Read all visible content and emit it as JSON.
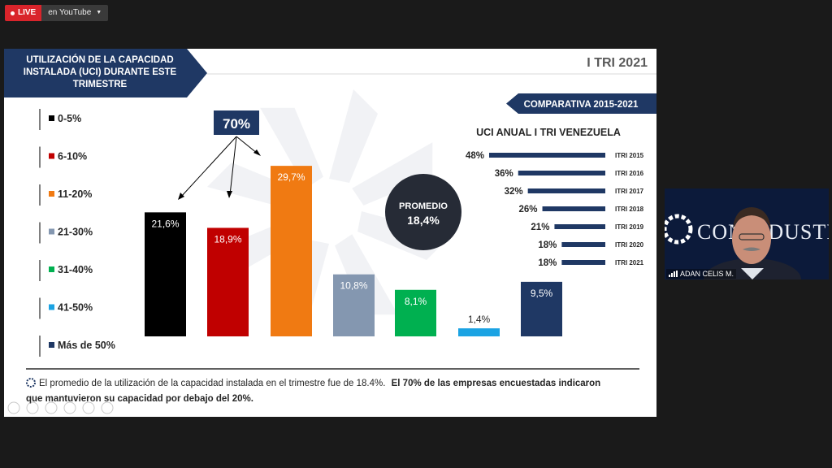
{
  "live": {
    "badge": "LIVE",
    "target": "en YouTube"
  },
  "slide": {
    "header_title": [
      "UTILIZACIÓN DE LA CAPACIDAD",
      "INSTALADA (UCI) DURANTE ESTE",
      "TRIMESTRE"
    ],
    "period": "I TRI 2021",
    "percent_callout": "70%",
    "promedio_label": "PROMEDIO",
    "promedio_value": "18,4%",
    "comparativa_label": "COMPARATIVA 2015-2021",
    "footnote_line1_normal": "El promedio de la utilización de la capacidad instalada en el trimestre fue de 18.4%.",
    "footnote_line1_bold": "El  70% de las empresas encuestadas indicaron",
    "footnote_line2_bold": "que mantuvieron su capacidad por debajo del 20%.",
    "colors": {
      "navy": "#1f3864",
      "red": "#c00000",
      "orange": "#f07a12",
      "grey": "#8497b0",
      "green": "#00b050",
      "blue": "#1ba3e3",
      "black": "#000000"
    }
  },
  "chart_data": [
    {
      "type": "bar",
      "categories": [
        "0-5%",
        "6-10%",
        "11-20%",
        "21-30%",
        "31-40%",
        "41-50%",
        "Más de 50%"
      ],
      "values": [
        21.6,
        18.9,
        29.7,
        10.8,
        8.1,
        1.4,
        9.5
      ],
      "labels": [
        "21,6%",
        "18,9%",
        "29,7%",
        "10,8%",
        "8,1%",
        "1,4%",
        "9,5%"
      ],
      "colors": [
        "#000000",
        "#c00000",
        "#f07a12",
        "#8497b0",
        "#00b050",
        "#1ba3e3",
        "#1f3864"
      ],
      "legend": "left",
      "ylim": [
        0,
        30
      ]
    },
    {
      "type": "bar",
      "orientation": "horizontal",
      "title": "UCI ANUAL I TRI VENEZUELA",
      "categories": [
        "ITRI 2015",
        "ITRI 2016",
        "ITRI 2017",
        "ITRI 2018",
        "ITRI 2019",
        "ITRI 2020",
        "ITRI 2021"
      ],
      "values": [
        48,
        36,
        32,
        26,
        21,
        18,
        18
      ],
      "labels": [
        "48%",
        "36%",
        "32%",
        "26%",
        "21%",
        "18%",
        "18%"
      ],
      "xlim": [
        0,
        48
      ]
    }
  ],
  "video": {
    "name": "ADAN CELIS M.",
    "logo_text": "CONINDUSTRIA"
  }
}
